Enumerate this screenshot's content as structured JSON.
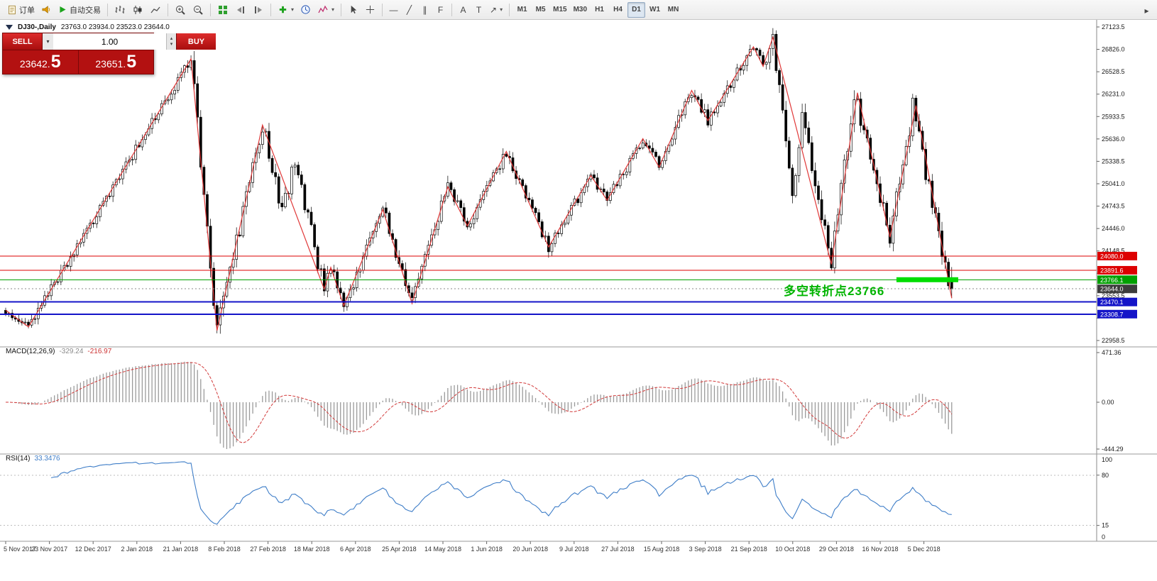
{
  "toolbar": {
    "order_label": "订单",
    "autotrade_label": "自动交易",
    "timeframes": [
      "M1",
      "M5",
      "M15",
      "M30",
      "H1",
      "H4",
      "D1",
      "W1",
      "MN"
    ],
    "active_timeframe": "D1"
  },
  "icons": {
    "dropdown": "▾",
    "spin_up": "▴",
    "spin_down": "▾",
    "hline_glyph": "—",
    "trendline_glyph": "╱",
    "channel_glyph": "∥",
    "fibo_glyph": "F",
    "text_glyph": "A",
    "label_glyph": "T",
    "arrow_glyph": "↗",
    "overflow_glyph": "▸"
  },
  "chart": {
    "symbol_label": "DJ30-,Daily",
    "ohlc": "23763.0 23934.0 23523.0 23644.0",
    "annotation": "多空转折点23766",
    "annotation_color": "#00b400"
  },
  "trade_panel": {
    "sell_label": "SELL",
    "buy_label": "BUY",
    "volume": "1.00",
    "sell_price_main": "23642.",
    "sell_price_big": "5",
    "buy_price_main": "23651.",
    "buy_price_big": "5"
  },
  "chart_data": {
    "type": "candlestick",
    "symbol": "DJ30-",
    "timeframe": "Daily",
    "candle_count": 292,
    "last_candle": {
      "open": 23763.0,
      "high": 23934.0,
      "low": 23523.0,
      "close": 23644.0
    },
    "path_pivots": [
      [
        0,
        23360
      ],
      [
        7,
        23140
      ],
      [
        57,
        26700
      ],
      [
        65,
        23090
      ],
      [
        79,
        25820
      ],
      [
        85,
        24650
      ],
      [
        89,
        25350
      ],
      [
        98,
        23640
      ],
      [
        100,
        23930
      ],
      [
        104,
        23420
      ],
      [
        116,
        24700
      ],
      [
        125,
        23450
      ],
      [
        136,
        25000
      ],
      [
        142,
        24480
      ],
      [
        154,
        25470
      ],
      [
        167,
        24200
      ],
      [
        180,
        25150
      ],
      [
        185,
        24820
      ],
      [
        196,
        25640
      ],
      [
        201,
        25260
      ],
      [
        211,
        26280
      ],
      [
        216,
        25880
      ],
      [
        230,
        26860
      ],
      [
        233,
        26600
      ],
      [
        236,
        26990
      ],
      [
        242,
        24950
      ],
      [
        245,
        25900
      ],
      [
        254,
        23970
      ],
      [
        261,
        26250
      ],
      [
        272,
        24330
      ],
      [
        279,
        26050
      ],
      [
        291,
        23520
      ]
    ],
    "zigzag_pivots": [
      [
        0,
        23360
      ],
      [
        7,
        23140
      ],
      [
        57,
        26700
      ],
      [
        65,
        23090
      ],
      [
        79,
        25820
      ],
      [
        98,
        23640
      ],
      [
        100,
        23930
      ],
      [
        104,
        23420
      ],
      [
        116,
        24700
      ],
      [
        125,
        23450
      ],
      [
        136,
        25000
      ],
      [
        142,
        24480
      ],
      [
        154,
        25470
      ],
      [
        167,
        24200
      ],
      [
        180,
        25150
      ],
      [
        185,
        24820
      ],
      [
        196,
        25640
      ],
      [
        201,
        25260
      ],
      [
        211,
        26280
      ],
      [
        216,
        25880
      ],
      [
        230,
        26860
      ],
      [
        233,
        26600
      ],
      [
        236,
        26990
      ],
      [
        254,
        23970
      ],
      [
        262,
        26250
      ],
      [
        272,
        24330
      ],
      [
        280,
        26080
      ],
      [
        291,
        23520
      ]
    ],
    "y_ticks": [
      27123.5,
      26826.0,
      26528.5,
      26231.0,
      25933.5,
      25636.0,
      25338.5,
      25041.0,
      24743.5,
      24446.0,
      24148.5,
      23851.0,
      23553.5,
      23256.0,
      22958.5
    ],
    "x_labels": [
      "5 Nov 2017",
      "23 Nov 2017",
      "12 Dec 2017",
      "2 Jan 2018",
      "21 Jan 2018",
      "8 Feb 2018",
      "27 Feb 2018",
      "18 Mar 2018",
      "6 Apr 2018",
      "25 Apr 2018",
      "14 May 2018",
      "1 Jun 2018",
      "20 Jun 2018",
      "9 Jul 2018",
      "27 Jul 2018",
      "15 Aug 2018",
      "3 Sep 2018",
      "21 Sep 2018",
      "10 Oct 2018",
      "29 Oct 2018",
      "16 Nov 2018",
      "5 Dec 2018"
    ],
    "levels": [
      {
        "price": 24080.0,
        "label": "24080.0",
        "color": "#dd0000",
        "style": "solid",
        "width": 1
      },
      {
        "price": 23891.6,
        "label": "23891.6",
        "color": "#dd0000",
        "style": "solid",
        "width": 1
      },
      {
        "price": 23766.1,
        "label": "23766.1",
        "color": "#00a000",
        "style": "solid",
        "width": 1
      },
      {
        "price": 23644.0,
        "label": "23644.0",
        "color": "#888888",
        "style": "dot",
        "width": 1,
        "tag_color": "#3c3c3c"
      },
      {
        "price": 23470.1,
        "label": "23470.1",
        "color": "#1414c8",
        "style": "solid",
        "width": 2
      },
      {
        "price": 23308.7,
        "label": "23308.7",
        "color": "#1414c8",
        "style": "solid",
        "width": 2
      }
    ],
    "highlight": {
      "price": 23766,
      "start_index": 274,
      "end_index": 293,
      "color": "#00dd00",
      "thickness": 7
    },
    "colors": {
      "zigzag": "#e03838",
      "candle_up": "#ffffff",
      "candle_down": "#000000",
      "candle_outline": "#000000"
    },
    "macd": {
      "label": "MACD(12,26,9)",
      "main_value": "-329.24",
      "signal_value": "-216.97",
      "axis": [
        471.36,
        0,
        -444.29
      ],
      "histogram_color": "#9a9a9a",
      "signal_color": "#d23a3a"
    },
    "rsi": {
      "label": "RSI(14)",
      "value": "33.3476",
      "levels": [
        80,
        15
      ],
      "axis_top": 100,
      "axis_bottom": 0,
      "line_color": "#3f7ec8"
    }
  }
}
